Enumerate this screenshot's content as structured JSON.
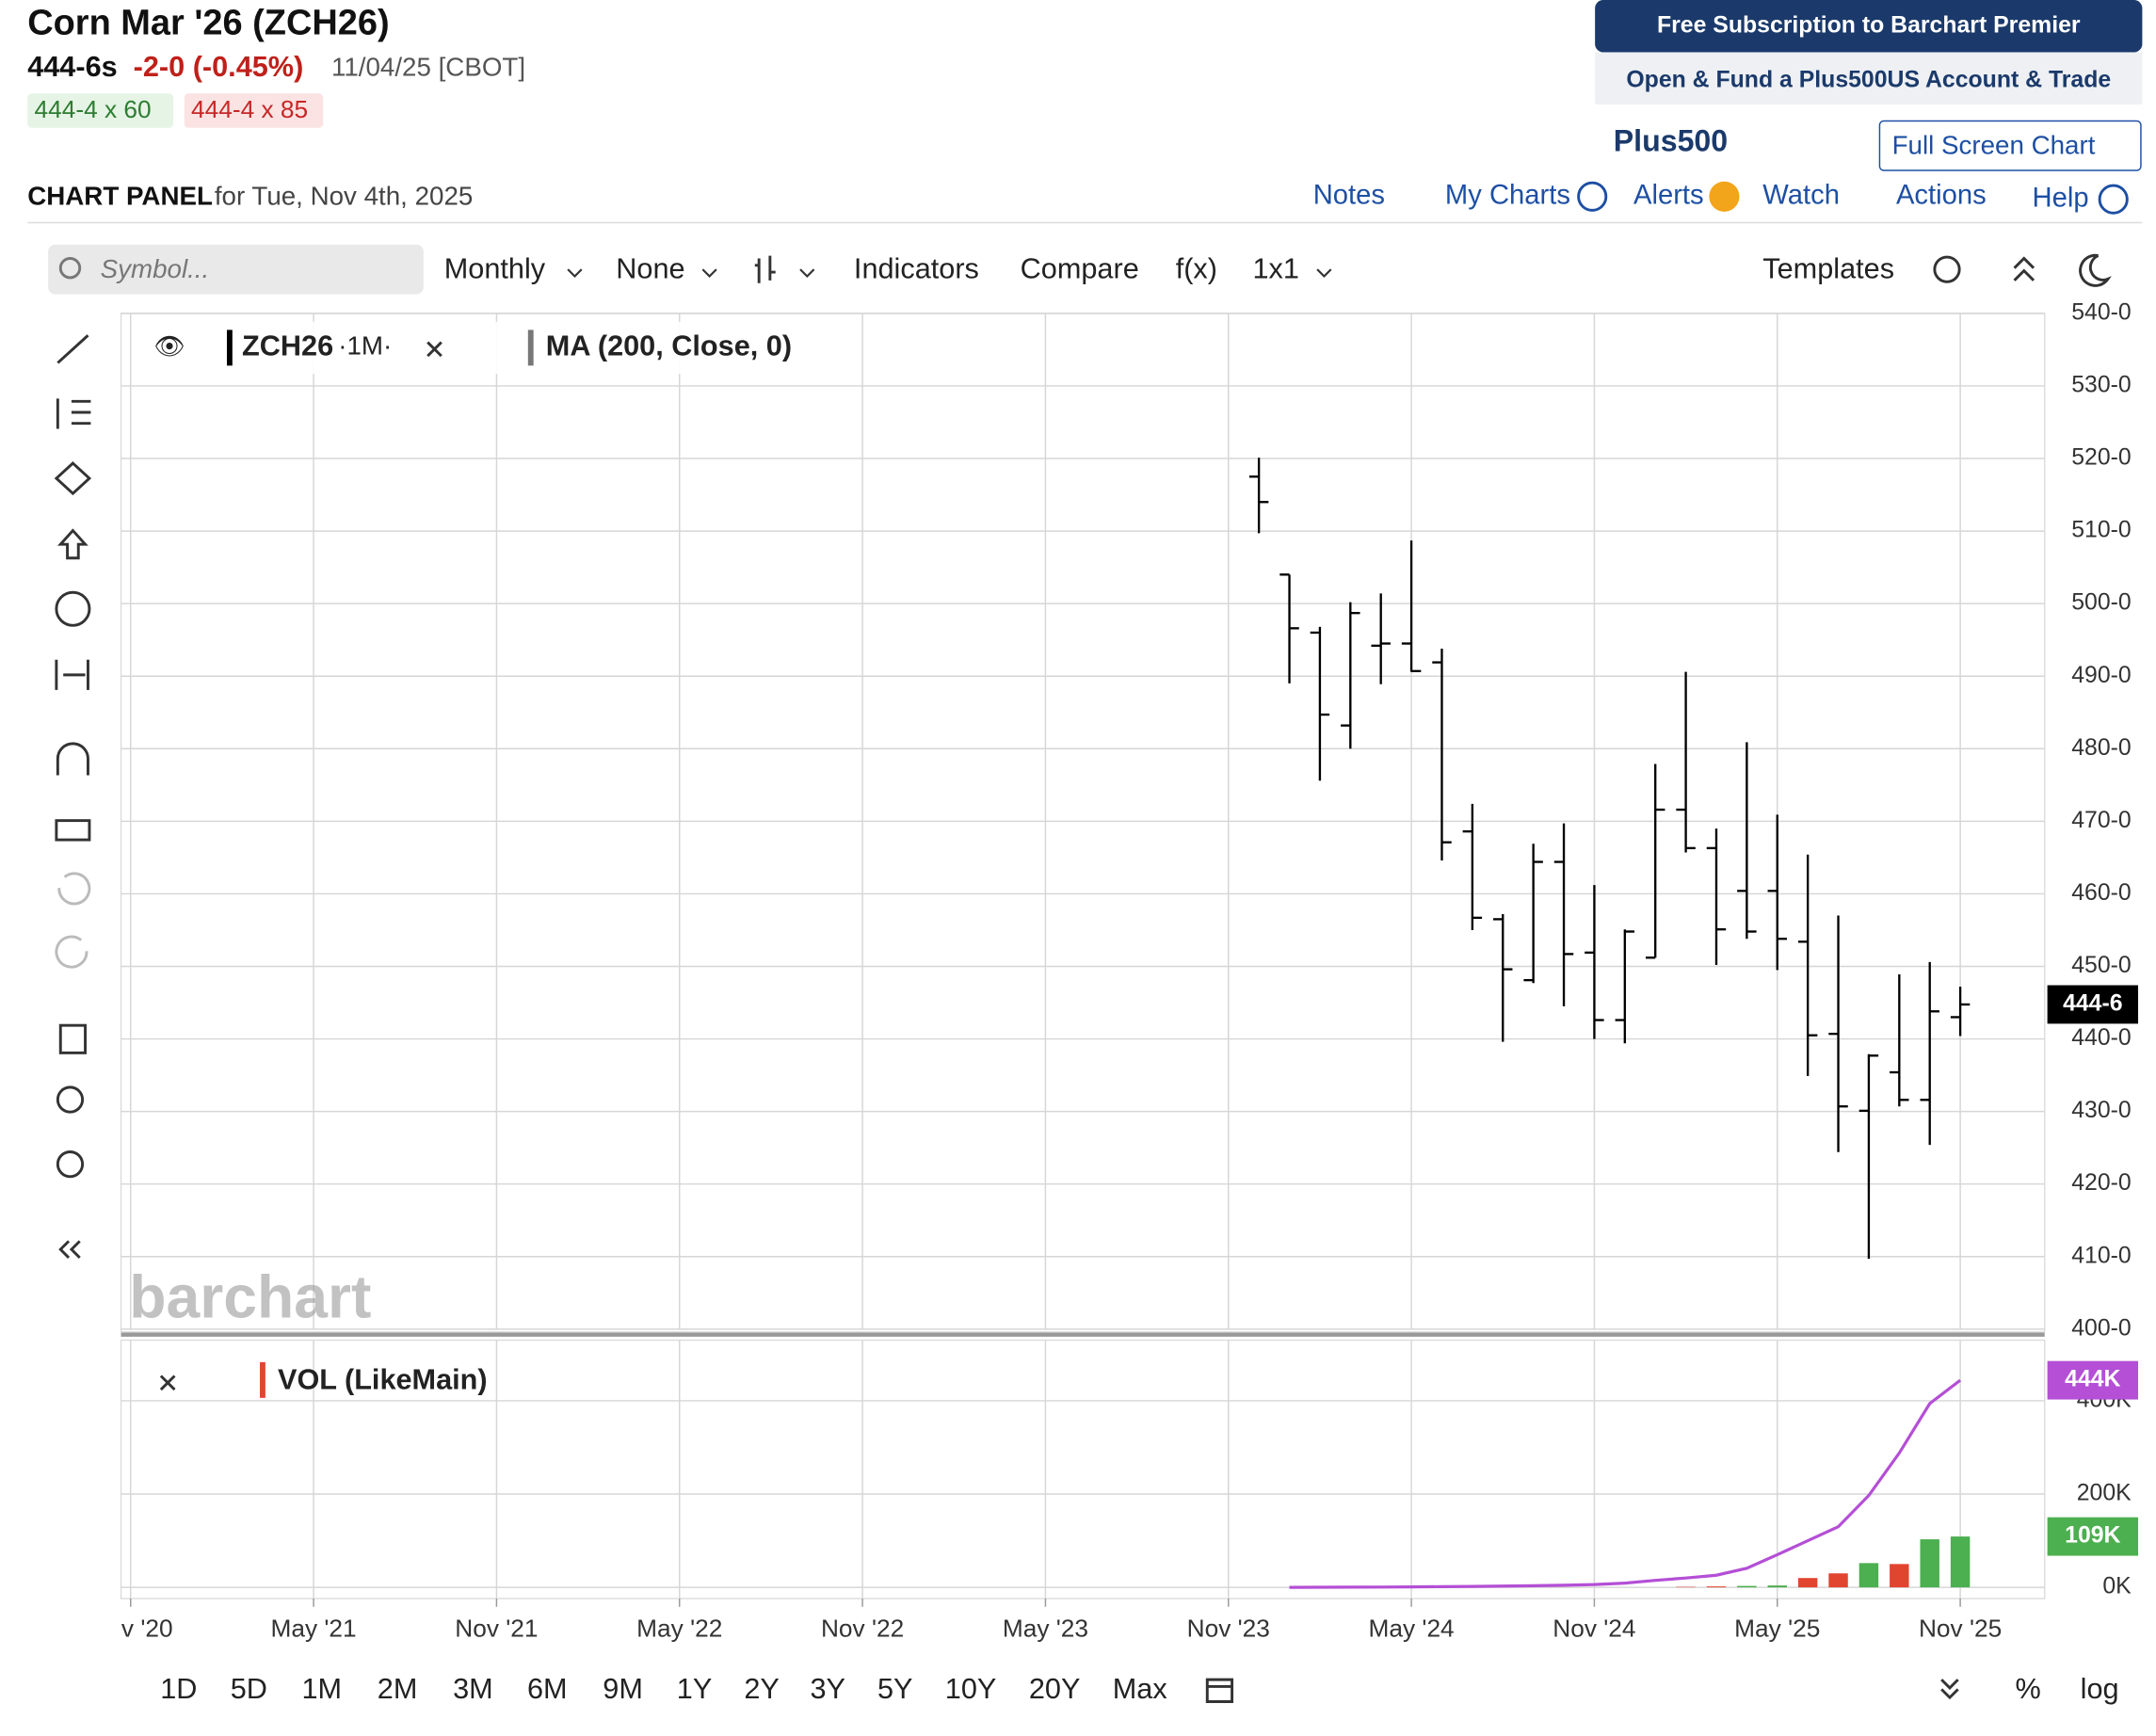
{
  "header": {
    "title": "Corn Mar '26 (ZCH26)",
    "price": "444-6s",
    "change": "-2-0 (-0.45%)",
    "date": "11/04/25 [CBOT]",
    "bid": "444-4 x 60",
    "ask": "444-4 x 85",
    "promo_1": "Free Subscription to Barchart Premier",
    "promo_2": "Open & Fund a Plus500US Account & Trade",
    "logo": "Plus500",
    "full_screen": "Full Screen Chart",
    "panel": "CHART PANEL",
    "panel_date": "for Tue, Nov 4th, 2025",
    "nav": [
      "Notes",
      "My Charts",
      "Alerts",
      "Watch",
      "Actions",
      "Help"
    ]
  },
  "toolbar": {
    "symbol": "Symbol...",
    "period": "Monthly",
    "overlay": "None",
    "indicators": "Indicators",
    "compare": "Compare",
    "fx": "f(x)",
    "layout": "1x1",
    "templates": "Templates"
  },
  "watermark": "barchart",
  "ranges": [
    "1D",
    "5D",
    "1M",
    "2M",
    "3M",
    "6M",
    "9M",
    "1Y",
    "2Y",
    "3Y",
    "5Y",
    "10Y",
    "20Y",
    "Max"
  ],
  "percent": "%",
  "log": "log",
  "chart_data": [
    {
      "type": "ohlc",
      "series_label": "ZCH26",
      "interval": "·1M·",
      "indicator": "MA (200, Close, 0)",
      "x": [
        "2023-12",
        "2024-01",
        "2024-02",
        "2024-03",
        "2024-04",
        "2024-05",
        "2024-06",
        "2024-07",
        "2024-08",
        "2024-09",
        "2024-10",
        "2024-11",
        "2024-12",
        "2025-01",
        "2025-02",
        "2025-03",
        "2025-04",
        "2025-05",
        "2025-06",
        "2025-07",
        "2025-08",
        "2025-09",
        "2025-10",
        "2025-11"
      ],
      "open": [
        517.5,
        504,
        496,
        483.2,
        494.2,
        494.5,
        491.9,
        468.6,
        456.5,
        448.1,
        464.4,
        451.9,
        442.6,
        451.2,
        471.6,
        466.3,
        460.4,
        460.4,
        453.4,
        440.7,
        430.1,
        435.4,
        431.6,
        443
      ],
      "high": [
        520.1,
        504,
        496.8,
        500.2,
        501.4,
        508.7,
        493.8,
        472.4,
        457.2,
        466.9,
        469.7,
        461.2,
        455.1,
        477.9,
        490.6,
        469,
        480.9,
        470.9,
        465.4,
        457,
        437.9,
        448.9,
        450.6,
        447.2
      ],
      "low": [
        509.7,
        489,
        475.6,
        480,
        488.9,
        490.6,
        464.6,
        455,
        439.6,
        447.7,
        444.5,
        440,
        439.4,
        451.2,
        465.7,
        450.2,
        453.8,
        449.5,
        434.9,
        424.4,
        409.7,
        430.7,
        425.4,
        440.4
      ],
      "close": [
        514,
        496.6,
        484.7,
        498.7,
        494.5,
        490.7,
        467.1,
        456.7,
        449.6,
        464.4,
        451.7,
        442.6,
        454.8,
        471.6,
        466.3,
        455.1,
        454.8,
        453.8,
        440.5,
        430.7,
        437.7,
        431.6,
        443.8,
        444.75
      ],
      "color": "#000000",
      "last_price": {
        "value": 444.75,
        "label": "444-6"
      },
      "ylim": [
        400,
        540
      ],
      "yticks": [
        {
          "value": 400,
          "label": "400-0"
        },
        {
          "value": 410,
          "label": "410-0"
        },
        {
          "value": 420,
          "label": "420-0"
        },
        {
          "value": 430,
          "label": "430-0"
        },
        {
          "value": 440,
          "label": "440-0"
        },
        {
          "value": 450,
          "label": "450-0"
        },
        {
          "value": 460,
          "label": "460-0"
        },
        {
          "value": 470,
          "label": "470-0"
        },
        {
          "value": 480,
          "label": "480-0"
        },
        {
          "value": 490,
          "label": "490-0"
        },
        {
          "value": 500,
          "label": "500-0"
        },
        {
          "value": 510,
          "label": "510-0"
        },
        {
          "value": 520,
          "label": "520-0"
        },
        {
          "value": 530,
          "label": "530-0"
        },
        {
          "value": 540,
          "label": "540-0"
        }
      ],
      "xlim": [
        "2020-11",
        "2026-01"
      ],
      "xticks": [
        {
          "value": "2020-11",
          "label": "v '20"
        },
        {
          "value": "2021-05",
          "label": "May '21"
        },
        {
          "value": "2021-11",
          "label": "Nov '21"
        },
        {
          "value": "2022-05",
          "label": "May '22"
        },
        {
          "value": "2022-11",
          "label": "Nov '22"
        },
        {
          "value": "2023-05",
          "label": "May '23"
        },
        {
          "value": "2023-11",
          "label": "Nov '23"
        },
        {
          "value": "2024-05",
          "label": "May '24"
        },
        {
          "value": "2024-11",
          "label": "Nov '24"
        },
        {
          "value": "2025-05",
          "label": "May '25"
        },
        {
          "value": "2025-11",
          "label": "Nov '25"
        }
      ],
      "grid": true
    },
    {
      "type": "bar",
      "title": "VOL (LikeMain)",
      "x": [
        "2023-12",
        "2024-01",
        "2024-02",
        "2024-03",
        "2024-04",
        "2024-05",
        "2024-06",
        "2024-07",
        "2024-08",
        "2024-09",
        "2024-10",
        "2024-11",
        "2024-12",
        "2025-01",
        "2025-02",
        "2025-03",
        "2025-04",
        "2025-05",
        "2025-06",
        "2025-07",
        "2025-08",
        "2025-09",
        "2025-10",
        "2025-11"
      ],
      "values": [
        0,
        0,
        0,
        0,
        0,
        0,
        0,
        0,
        0,
        0,
        0,
        0,
        0,
        0,
        1000,
        2000,
        3000,
        4000,
        20000,
        30000,
        52000,
        50000,
        103000,
        109000
      ],
      "value_labels": [
        null,
        null,
        null,
        null,
        null,
        null,
        null,
        null,
        null,
        null,
        null,
        null,
        null,
        null,
        null,
        null,
        null,
        null,
        null,
        null,
        null,
        null,
        null,
        "109K"
      ],
      "colors": [
        "#4caf50",
        "#4caf50",
        "#e2452f",
        "#4caf50",
        "#4caf50",
        "#e2452f",
        "#e2452f",
        "#e2452f",
        "#e2452f",
        "#4caf50",
        "#e2452f",
        "#e2452f",
        "#4caf50",
        "#4caf50",
        "#e2452f",
        "#e2452f",
        "#4caf50",
        "#4caf50",
        "#e2452f",
        "#e2452f",
        "#4caf50",
        "#e2452f",
        "#4caf50",
        "#4caf50"
      ],
      "line": {
        "color": "#b44fd6",
        "values": [
          null,
          0,
          200,
          400,
          600,
          1000,
          1500,
          2000,
          2700,
          3500,
          4500,
          6000,
          9000,
          15000,
          20000,
          26000,
          41000,
          70000,
          100000,
          130000,
          197000,
          288000,
          394000,
          444000
        ],
        "value_labels": [
          null,
          null,
          null,
          null,
          null,
          null,
          null,
          null,
          null,
          null,
          null,
          null,
          null,
          null,
          null,
          null,
          null,
          null,
          null,
          null,
          null,
          null,
          null,
          "444K"
        ]
      },
      "ylim": [
        -24000,
        530000
      ],
      "yticks": [
        {
          "value": 0,
          "label": "0K"
        },
        {
          "value": 200000,
          "label": "200K"
        },
        {
          "value": 400000,
          "label": "400K"
        }
      ],
      "xlim": [
        "2020-11",
        "2026-01"
      ],
      "grid": true
    }
  ]
}
